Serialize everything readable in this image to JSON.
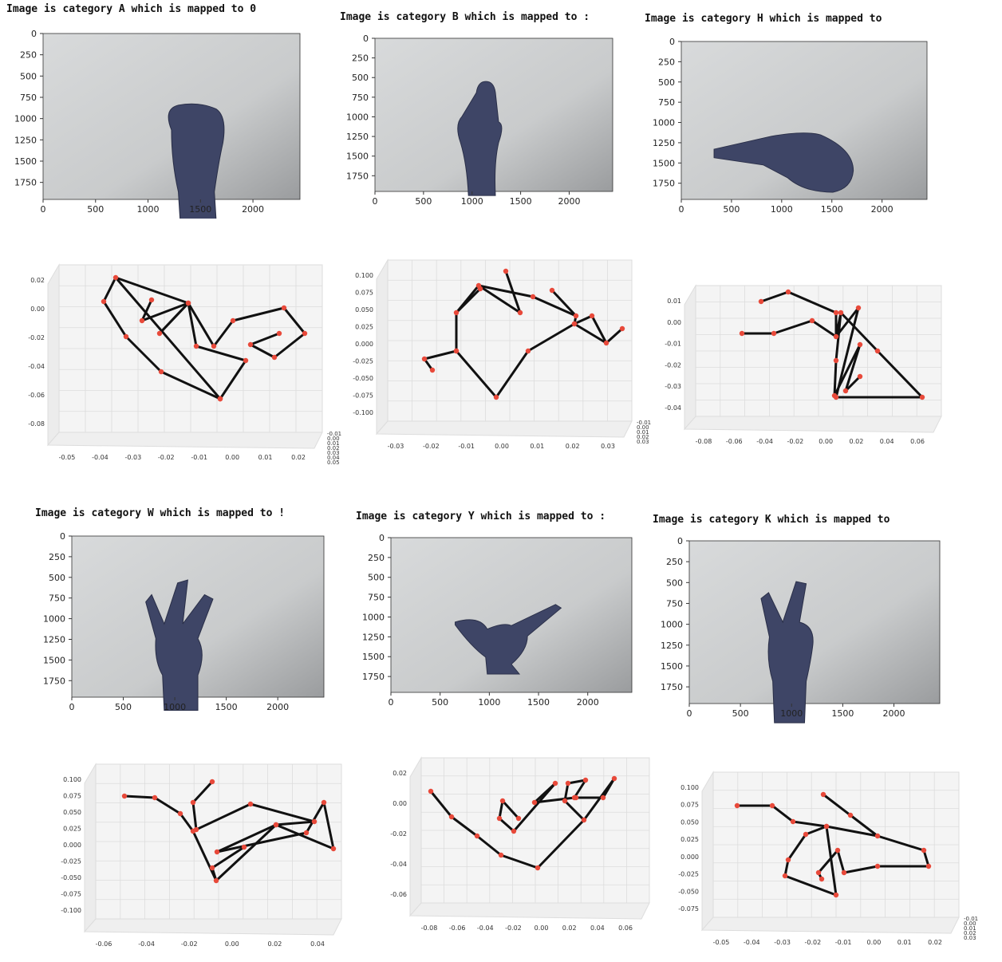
{
  "panels": [
    {
      "title": "Image is category A which is mapped to 0",
      "hand": "fist"
    },
    {
      "title": "Image is category B which is mapped to :",
      "hand": "flat"
    },
    {
      "title": "Image is category H which is mapped to",
      "hand": "side"
    },
    {
      "title": "Image is category W which is mapped to !",
      "hand": "three"
    },
    {
      "title": "Image is category Y which is mapped to :",
      "hand": "shaka"
    },
    {
      "title": "Image is category K which is mapped to",
      "hand": "vee"
    }
  ],
  "image_axes": {
    "x_ticks": [
      "0",
      "500",
      "1000",
      "1500",
      "2000"
    ],
    "y_ticks": [
      "0",
      "250",
      "500",
      "750",
      "1000",
      "1250",
      "1500",
      "1750"
    ]
  },
  "plots3d": [
    {
      "x_ticks": [
        "-0.05",
        "-0.04",
        "-0.03",
        "-0.02",
        "-0.01",
        "0.00",
        "0.01",
        "0.02"
      ],
      "y_ticks": [
        "-0.08",
        "-0.06",
        "-0.04",
        "-0.02",
        "0.00",
        "0.02"
      ],
      "z_ticks": [
        "-0.01",
        "0.00",
        "0.01",
        "0.02",
        "0.03",
        "0.04",
        "0.05"
      ]
    },
    {
      "x_ticks": [
        "-0.03",
        "-0.02",
        "-0.01",
        "0.00",
        "0.01",
        "0.02",
        "0.03"
      ],
      "y_ticks": [
        "-0.100",
        "-0.075",
        "-0.050",
        "-0.025",
        "0.000",
        "0.025",
        "0.050",
        "0.075",
        "0.100"
      ],
      "z_ticks": [
        "-0.01",
        "0.00",
        "0.01",
        "0.02",
        "0.03"
      ]
    },
    {
      "x_ticks": [
        "-0.08",
        "-0.06",
        "-0.04",
        "-0.02",
        "0.00",
        "0.02",
        "0.04",
        "0.06"
      ],
      "y_ticks": [
        "-0.04",
        "-0.03",
        "-0.02",
        "-0.01",
        "0.00",
        "0.01"
      ],
      "z_ticks": []
    },
    {
      "x_ticks": [
        "-0.06",
        "-0.04",
        "-0.02",
        "0.00",
        "0.02",
        "0.04"
      ],
      "y_ticks": [
        "-0.100",
        "-0.075",
        "-0.050",
        "-0.025",
        "0.000",
        "0.025",
        "0.050",
        "0.075",
        "0.100"
      ],
      "z_ticks": []
    },
    {
      "x_ticks": [
        "-0.08",
        "-0.06",
        "-0.04",
        "-0.02",
        "0.00",
        "0.02",
        "0.04",
        "0.06"
      ],
      "y_ticks": [
        "-0.06",
        "-0.04",
        "-0.02",
        "0.00",
        "0.02"
      ],
      "z_ticks": []
    },
    {
      "x_ticks": [
        "-0.05",
        "-0.04",
        "-0.03",
        "-0.02",
        "-0.01",
        "0.00",
        "0.01",
        "0.02"
      ],
      "y_ticks": [
        "-0.075",
        "-0.050",
        "-0.025",
        "0.000",
        "0.025",
        "0.050",
        "0.075",
        "0.100"
      ],
      "z_ticks": [
        "-0.01",
        "0.00",
        "0.01",
        "0.02",
        "0.03"
      ]
    }
  ],
  "colors": {
    "photo_bg": "#c9cbcc",
    "hand": "#3e4566",
    "joint": "#e8493a",
    "bone": "#111111"
  },
  "chart_data": [
    {
      "type": "image",
      "title": "Image is category A which is mapped to 0"
    },
    {
      "type": "image",
      "title": "Image is category B which is mapped to :"
    },
    {
      "type": "image",
      "title": "Image is category H which is mapped to"
    },
    {
      "type": "image",
      "title": "Image is category W which is mapped to !"
    },
    {
      "type": "image",
      "title": "Image is category Y which is mapped to :"
    },
    {
      "type": "image",
      "title": "Image is category K which is mapped to"
    }
  ]
}
